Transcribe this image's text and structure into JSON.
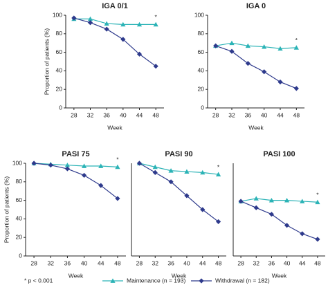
{
  "footnote": "* p < 0.001",
  "chart_data": [
    {
      "type": "line",
      "title": "IGA 0/1",
      "xlabel": "Week",
      "ylabel": "Proportion of patients (%)",
      "x": [
        28,
        32,
        36,
        40,
        44,
        48
      ],
      "xlim": [
        26,
        50
      ],
      "xticks": [
        28,
        32,
        36,
        40,
        44,
        48
      ],
      "ylim": [
        0,
        100
      ],
      "yticks": [
        0,
        20,
        40,
        60,
        80,
        100
      ],
      "annotation": "*",
      "series": [
        {
          "name": "Maintenance (n = 193)",
          "color": "#2bb3b6",
          "marker": "triangle",
          "values": [
            96,
            96,
            91,
            90,
            90,
            90
          ]
        },
        {
          "name": "Withdrawal (n = 182)",
          "color": "#2e3a8c",
          "marker": "diamond",
          "values": [
            97,
            92,
            85,
            74,
            58,
            45
          ]
        }
      ]
    },
    {
      "type": "line",
      "title": "IGA 0",
      "xlabel": "Week",
      "x": [
        28,
        32,
        36,
        40,
        44,
        48
      ],
      "xlim": [
        26,
        50
      ],
      "xticks": [
        28,
        32,
        36,
        40,
        44,
        48
      ],
      "ylim": [
        0,
        100
      ],
      "yticks": [
        0,
        20,
        40,
        60,
        80,
        100
      ],
      "annotation": "*",
      "series": [
        {
          "name": "Maintenance (n = 193)",
          "color": "#2bb3b6",
          "marker": "triangle",
          "values": [
            67,
            70,
            67,
            66,
            64,
            65
          ]
        },
        {
          "name": "Withdrawal (n = 182)",
          "color": "#2e3a8c",
          "marker": "diamond",
          "values": [
            67,
            61,
            48,
            39,
            28,
            21
          ]
        }
      ]
    },
    {
      "type": "line",
      "title": "PASI 75",
      "xlabel": "Week",
      "ylabel": "Proportion of patients (%)",
      "x": [
        28,
        32,
        36,
        40,
        44,
        48
      ],
      "xlim": [
        26,
        50
      ],
      "xticks": [
        28,
        32,
        36,
        40,
        44,
        48
      ],
      "ylim": [
        0,
        100
      ],
      "yticks": [
        0,
        20,
        40,
        60,
        80,
        100
      ],
      "annotation": "*",
      "series": [
        {
          "name": "Maintenance (n = 193)",
          "color": "#2bb3b6",
          "marker": "triangle",
          "values": [
            100,
            99,
            98,
            97,
            97,
            96
          ]
        },
        {
          "name": "Withdrawal (n = 182)",
          "color": "#2e3a8c",
          "marker": "diamond",
          "values": [
            100,
            98,
            94,
            87,
            76,
            62
          ]
        }
      ]
    },
    {
      "type": "line",
      "title": "PASI 90",
      "xlabel": "Week",
      "x": [
        28,
        32,
        36,
        40,
        44,
        48
      ],
      "xlim": [
        26,
        50
      ],
      "xticks": [
        28,
        32,
        36,
        40,
        44,
        48
      ],
      "ylim": [
        0,
        100
      ],
      "annotation": "*",
      "series": [
        {
          "name": "Maintenance (n = 193)",
          "color": "#2bb3b6",
          "marker": "triangle",
          "values": [
            100,
            96,
            92,
            91,
            90,
            88
          ]
        },
        {
          "name": "Withdrawal (n = 182)",
          "color": "#2e3a8c",
          "marker": "diamond",
          "values": [
            100,
            90,
            80,
            65,
            50,
            37
          ]
        }
      ]
    },
    {
      "type": "line",
      "title": "PASI 100",
      "xlabel": "Week",
      "x": [
        28,
        32,
        36,
        40,
        44,
        48
      ],
      "xlim": [
        26,
        50
      ],
      "xticks": [
        28,
        32,
        36,
        40,
        44,
        48
      ],
      "ylim": [
        0,
        100
      ],
      "annotation": "*",
      "series": [
        {
          "name": "Maintenance (n = 193)",
          "color": "#2bb3b6",
          "marker": "triangle",
          "values": [
            59,
            62,
            60,
            60,
            59,
            58
          ]
        },
        {
          "name": "Withdrawal (n = 182)",
          "color": "#2e3a8c",
          "marker": "diamond",
          "values": [
            59,
            52,
            45,
            33,
            24,
            18
          ]
        }
      ]
    }
  ]
}
